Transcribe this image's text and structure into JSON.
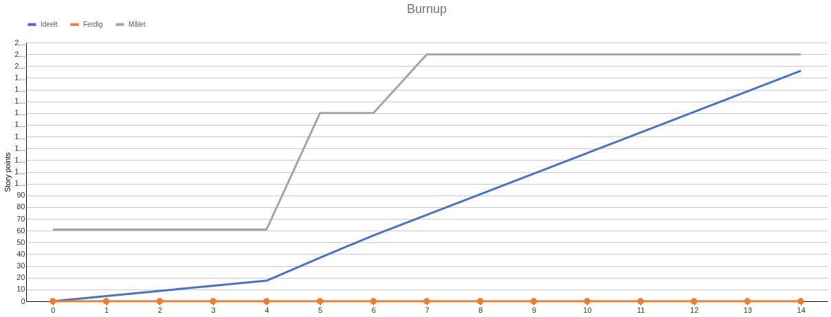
{
  "chart_data": {
    "type": "line",
    "title": "Burnup",
    "ylabel": "Story points",
    "x": [
      0,
      1,
      2,
      3,
      4,
      5,
      6,
      7,
      8,
      9,
      10,
      11,
      12,
      13,
      14
    ],
    "series": [
      {
        "name": "Ideelt",
        "color": "#4472c4",
        "values": [
          0,
          4.4,
          8.8,
          13.1,
          17.5,
          37,
          56,
          73.5,
          91,
          108.5,
          126,
          143.5,
          161,
          178.5,
          196
        ]
      },
      {
        "name": "Ferdig",
        "color": "#ed7d31",
        "marker": "circle",
        "values": [
          0,
          0,
          0,
          0,
          0,
          0,
          0,
          0,
          0,
          0,
          0,
          0,
          0,
          0,
          0
        ]
      },
      {
        "name": "Målet",
        "color": "#a5a5a5",
        "values": [
          61,
          61,
          61,
          61,
          61,
          160,
          160,
          210,
          210,
          210,
          210,
          210,
          210,
          210,
          210
        ]
      }
    ],
    "xlim": [
      -0.5,
      14.5
    ],
    "xticks": [
      0,
      1,
      2,
      3,
      4,
      5,
      6,
      7,
      8,
      9,
      10,
      11,
      12,
      13,
      14
    ],
    "ylim": [
      0,
      220
    ],
    "yticks": [
      0,
      10,
      20,
      30,
      40,
      50,
      60,
      70,
      80,
      90,
      {
        "value": 100,
        "label": "1..."
      },
      {
        "value": 110,
        "label": "1..."
      },
      {
        "value": 120,
        "label": "1..."
      },
      {
        "value": 130,
        "label": "1..."
      },
      {
        "value": 140,
        "label": "1..."
      },
      {
        "value": 150,
        "label": "1..."
      },
      {
        "value": 160,
        "label": "1..."
      },
      {
        "value": 170,
        "label": "1..."
      },
      {
        "value": 180,
        "label": "1..."
      },
      {
        "value": 190,
        "label": "1..."
      },
      {
        "value": 200,
        "label": "2..."
      },
      {
        "value": 210,
        "label": "2..."
      },
      {
        "value": 220,
        "label": "2..."
      }
    ],
    "grid": "y",
    "legend": "top",
    "line_style": "solid"
  }
}
